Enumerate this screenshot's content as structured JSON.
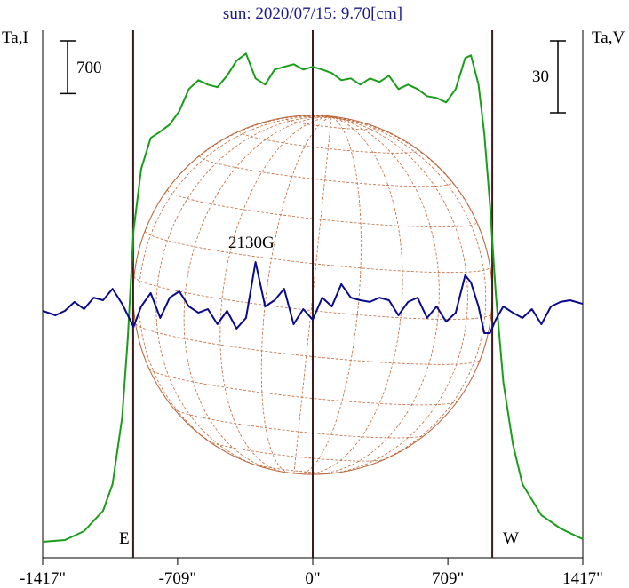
{
  "chart_data": {
    "type": "line",
    "title": "sun: 2020/07/15: 9.70[cm]",
    "xlim": [
      -1417,
      1417
    ],
    "xticks": [
      {
        "value": -1417,
        "label": "-1417\""
      },
      {
        "value": -709,
        "label": "-709\""
      },
      {
        "value": 0,
        "label": "0\""
      },
      {
        "value": 709,
        "label": "709\""
      },
      {
        "value": 1417,
        "label": "1417\""
      }
    ],
    "ylim": [
      0,
      7000
    ],
    "y2lim": [
      -110,
      110
    ],
    "vlines": [
      -942,
      0,
      942
    ],
    "scale_bars": [
      {
        "value": 700,
        "axis": "y"
      },
      {
        "value": 30,
        "axis": "y2"
      }
    ],
    "annotations": [
      "E",
      "W",
      "2130G"
    ],
    "series": [
      {
        "name": "Ta,I",
        "color": "#1a9e1a",
        "x": [
          -1417,
          -1300,
          -1200,
          -1100,
          -1050,
          -1000,
          -970,
          -940,
          -900,
          -850,
          -800,
          -750,
          -700,
          -650,
          -600,
          -550,
          -500,
          -450,
          -400,
          -350,
          -300,
          -250,
          -200,
          -150,
          -100,
          -50,
          0,
          50,
          100,
          150,
          200,
          250,
          300,
          350,
          400,
          450,
          500,
          550,
          600,
          650,
          700,
          750,
          800,
          830,
          870,
          900,
          930,
          960,
          1000,
          1050,
          1100,
          1200,
          1300,
          1417
        ],
        "values": [
          212,
          236,
          353,
          624,
          978,
          1861,
          2921,
          4335,
          5159,
          5571,
          5654,
          5748,
          5925,
          6219,
          6337,
          6278,
          6243,
          6396,
          6596,
          6690,
          6360,
          6278,
          6478,
          6514,
          6549,
          6478,
          6514,
          6478,
          6431,
          6337,
          6360,
          6278,
          6360,
          6313,
          6396,
          6219,
          6278,
          6219,
          6125,
          6101,
          6042,
          6219,
          6631,
          6667,
          6278,
          5630,
          4688,
          3510,
          2332,
          1508,
          978,
          565,
          389,
          247
        ]
      },
      {
        "name": "Ta,V",
        "color": "#0a0a8c",
        "axis": "y2",
        "x": [
          -1417,
          -1350,
          -1300,
          -1250,
          -1200,
          -1150,
          -1100,
          -1050,
          -1000,
          -970,
          -940,
          -900,
          -850,
          -800,
          -750,
          -700,
          -650,
          -600,
          -550,
          -500,
          -450,
          -400,
          -350,
          -300,
          -250,
          -200,
          -150,
          -100,
          -50,
          0,
          50,
          100,
          150,
          200,
          250,
          300,
          350,
          400,
          450,
          500,
          550,
          600,
          650,
          700,
          750,
          800,
          830,
          870,
          900,
          930,
          960,
          1000,
          1050,
          1100,
          1150,
          1200,
          1250,
          1300,
          1350,
          1417
        ],
        "values": [
          -7.0,
          -8.9,
          -7.0,
          -3.3,
          -6.3,
          -1.5,
          -2.6,
          2.2,
          -4.1,
          -8.9,
          -13.7,
          -5.2,
          0.4,
          -10,
          -1.5,
          1.1,
          -5.2,
          -7.8,
          -6.3,
          -12.6,
          -7,
          -14.4,
          -10,
          13.3,
          -5.2,
          -2.6,
          2.2,
          -12.6,
          -6.3,
          -10.7,
          -1.5,
          -5.2,
          4.1,
          -1.5,
          -2.6,
          -3.3,
          -1.5,
          -2.6,
          -8.9,
          -3.3,
          -1.5,
          -10,
          -5.2,
          -11.5,
          -7.8,
          7.8,
          4.8,
          -5.2,
          -16.3,
          -16.3,
          -10.7,
          -5.2,
          -7.8,
          -10,
          -6.3,
          -12.6,
          -5.2,
          -3.3,
          -2.6,
          -4.1
        ]
      }
    ]
  }
}
